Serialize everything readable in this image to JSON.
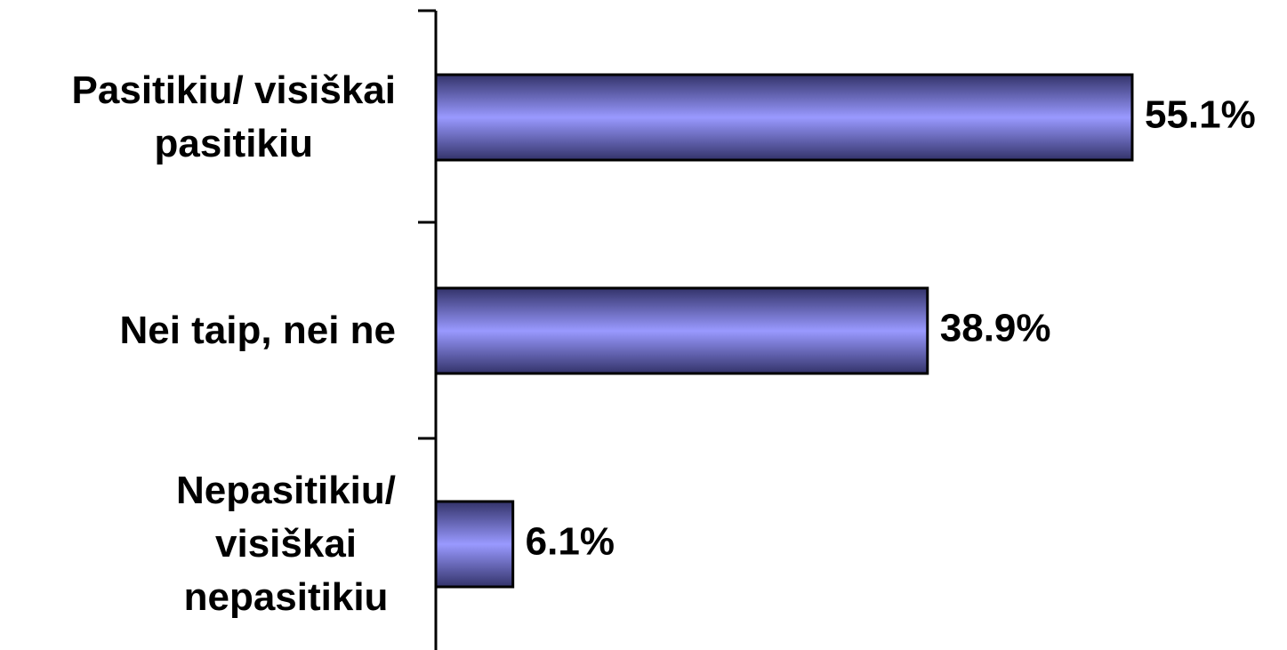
{
  "chart_data": {
    "type": "bar",
    "orientation": "horizontal",
    "categories": [
      "Pasitikiu/ visiškai\npasitikiu",
      "Nei taip, nei ne",
      "Nepasitikiu/\nvisiškai\nnepasitikiu"
    ],
    "values": [
      55.1,
      38.9,
      6.1
    ],
    "value_labels": [
      "55.1%",
      "38.9%",
      "6.1%"
    ],
    "color": "#9999ff"
  }
}
